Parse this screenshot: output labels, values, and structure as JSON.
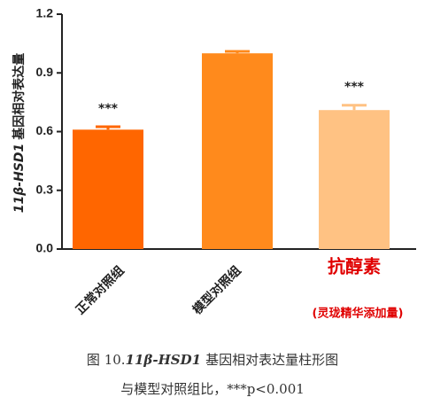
{
  "chart_data": {
    "type": "bar",
    "y_label_gene": "11β-HSD1",
    "y_label_rest": "基因相对表达量",
    "categories": [
      "正常对照组",
      "模型对照组",
      "抗醇素"
    ],
    "category_note": "(灵珑精华添加量)",
    "values": [
      0.61,
      1.0,
      0.71
    ],
    "errors": [
      0.015,
      0.01,
      0.025
    ],
    "significance": [
      "***",
      null,
      "***"
    ],
    "colors": [
      "#ff6600",
      "#ff8a1c",
      "#ffc283"
    ],
    "ylim": [
      0,
      1.2
    ],
    "yticks": [
      {
        "value": 0,
        "label": "0.0"
      },
      0.3,
      0.6,
      0.9,
      1.2
    ]
  },
  "caption": {
    "prefix": "图 10.",
    "gene": "11β-HSD1",
    "line1_rest": "基因相对表达量柱形图",
    "line2": "与模型对照组比，***p<0.001"
  }
}
